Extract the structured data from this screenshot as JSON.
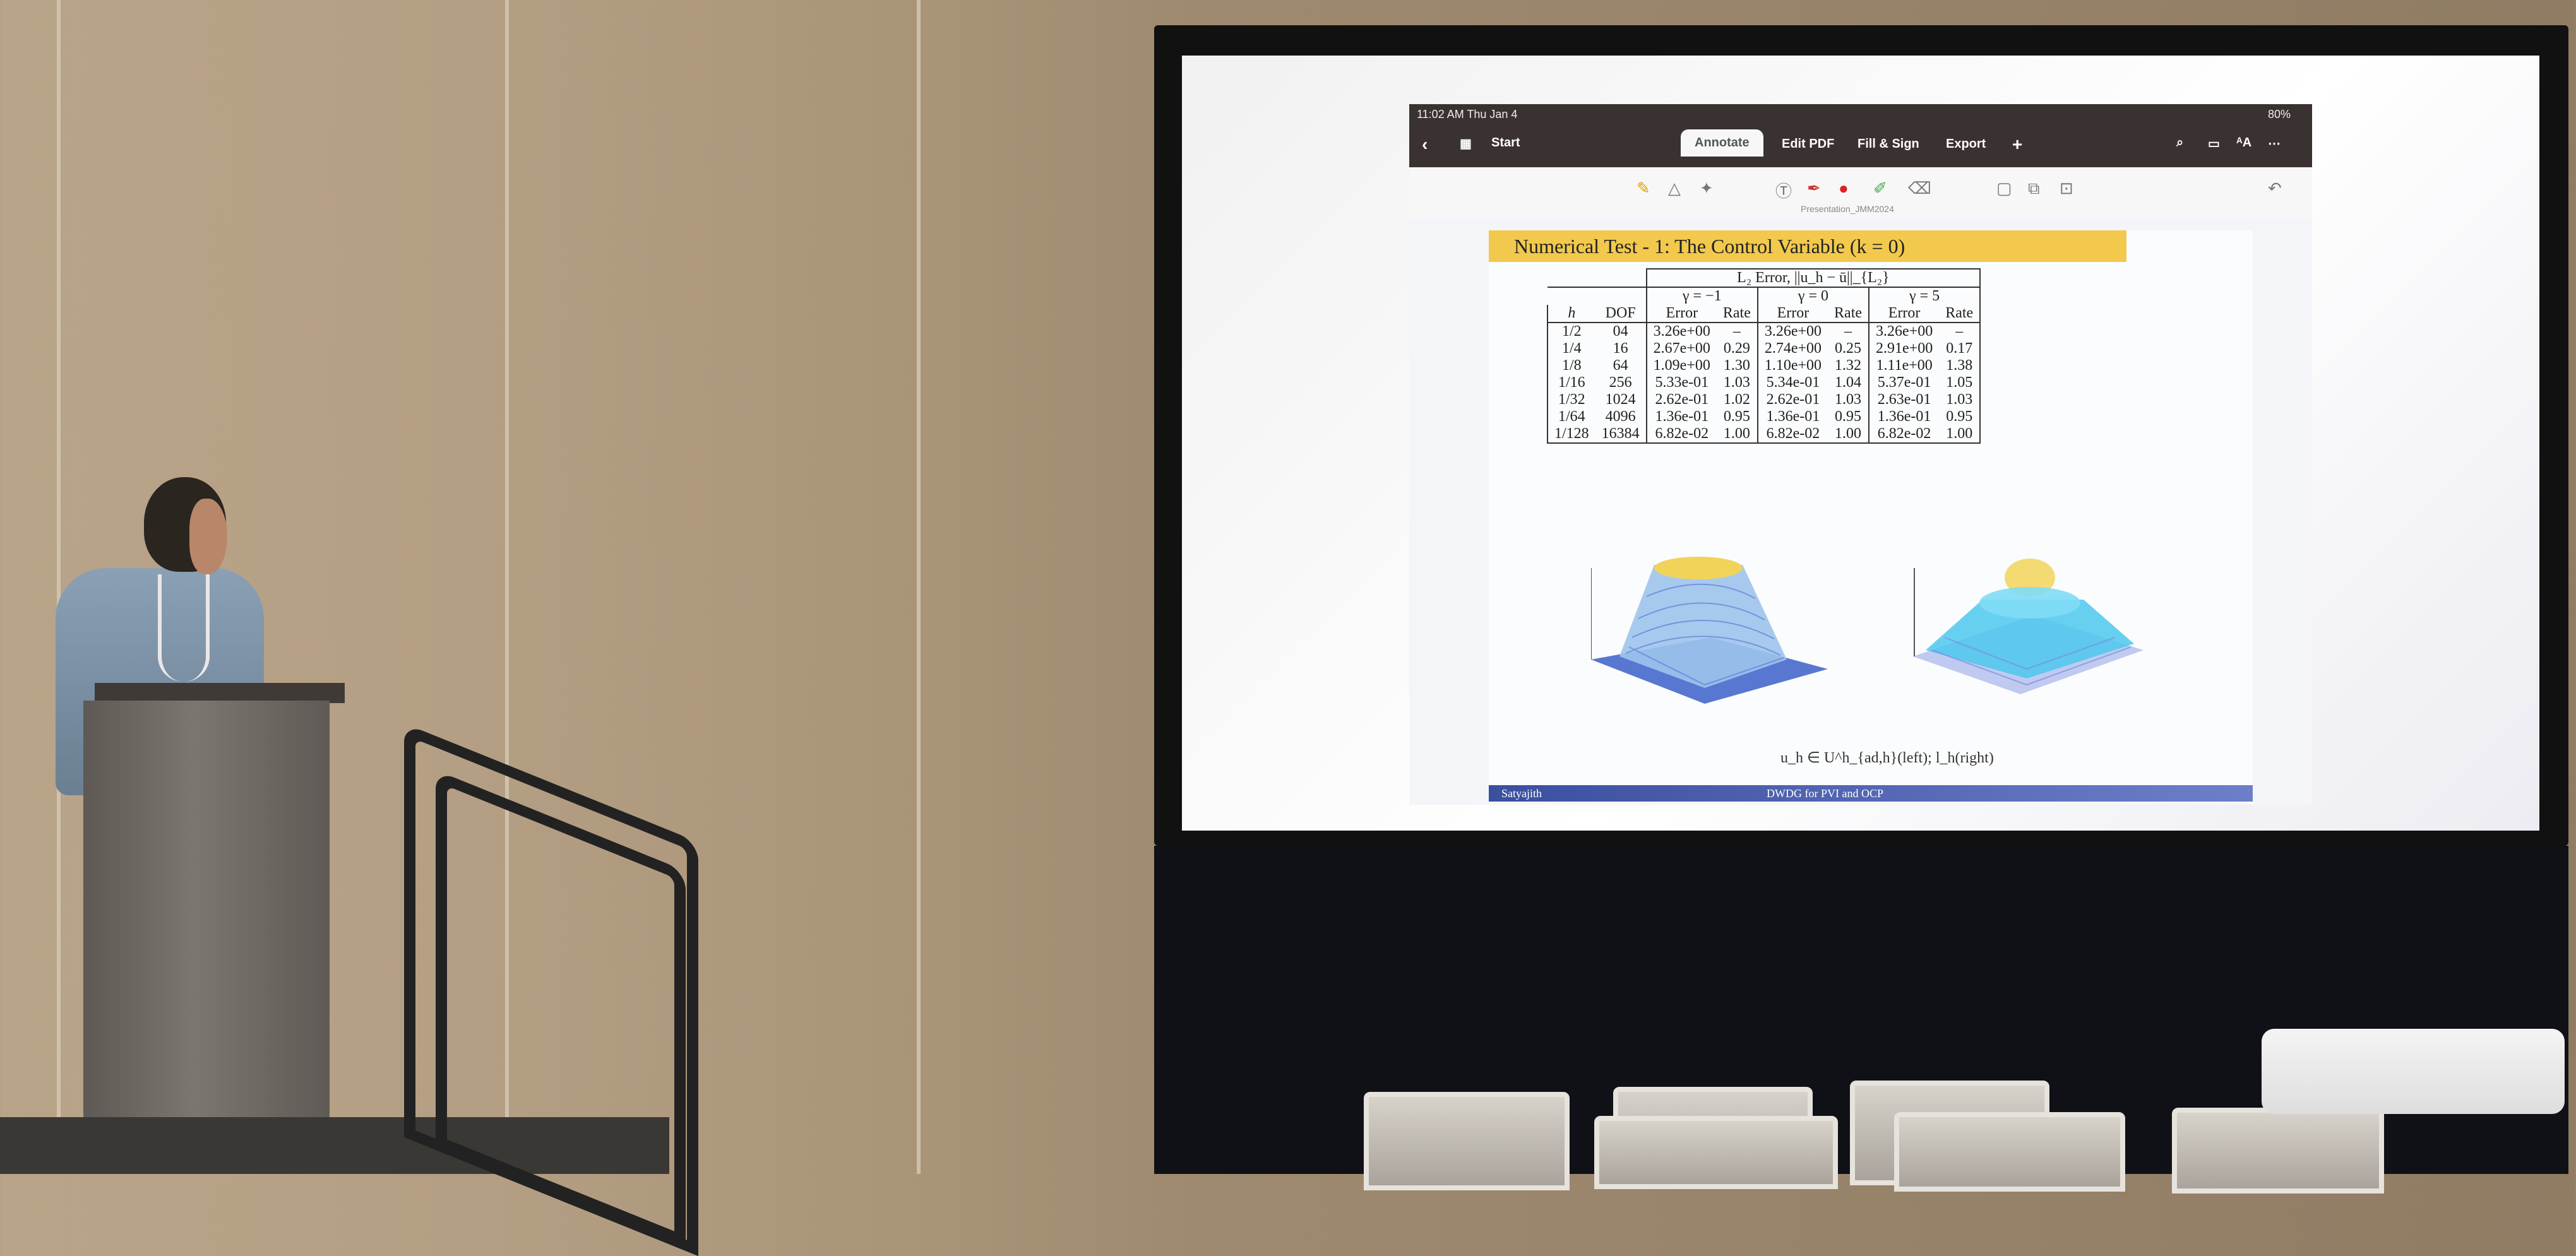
{
  "tablet": {
    "time": "11:02 AM  Thu Jan 4",
    "battery": "80%",
    "start_label": "Start",
    "tabs": [
      "Annotate",
      "Edit PDF",
      "Fill & Sign",
      "Export"
    ],
    "add_label": "+",
    "doc_name": "Presentation_JMM2024"
  },
  "slide": {
    "title": "Numerical Test - 1: The Control Variable (k = 0)",
    "table_caption": "L₂ Error, ||u_h − ū||_{L₂}",
    "gamma_headers": [
      "γ = −1",
      "γ = 0",
      "γ = 5"
    ],
    "col_headers": [
      "h",
      "DOF",
      "Error",
      "Rate",
      "Error",
      "Rate",
      "Error",
      "Rate"
    ],
    "rows": [
      [
        "1/2",
        "04",
        "3.26e+00",
        "–",
        "3.26e+00",
        "–",
        "3.26e+00",
        "–"
      ],
      [
        "1/4",
        "16",
        "2.67e+00",
        "0.29",
        "2.74e+00",
        "0.25",
        "2.91e+00",
        "0.17"
      ],
      [
        "1/8",
        "64",
        "1.09e+00",
        "1.30",
        "1.10e+00",
        "1.32",
        "1.11e+00",
        "1.38"
      ],
      [
        "1/16",
        "256",
        "5.33e-01",
        "1.03",
        "5.34e-01",
        "1.04",
        "5.37e-01",
        "1.05"
      ],
      [
        "1/32",
        "1024",
        "2.62e-01",
        "1.02",
        "2.62e-01",
        "1.03",
        "2.63e-01",
        "1.03"
      ],
      [
        "1/64",
        "4096",
        "1.36e-01",
        "0.95",
        "1.36e-01",
        "0.95",
        "1.36e-01",
        "0.95"
      ],
      [
        "1/128",
        "16384",
        "6.82e-02",
        "1.00",
        "6.82e-02",
        "1.00",
        "6.82e-02",
        "1.00"
      ]
    ],
    "figure_caption": "u_h ∈ U^h_{ad,h}(left); l_h(right)",
    "footer_left": "Satyajith",
    "footer_center": "DWDG for PVI and OCP"
  },
  "colors": {
    "title_bar": "#f2c94c",
    "footer_bar": "#3b4fa0",
    "plot_left_top": "#f2d35a",
    "plot_right_top": "#4cc8ef"
  }
}
